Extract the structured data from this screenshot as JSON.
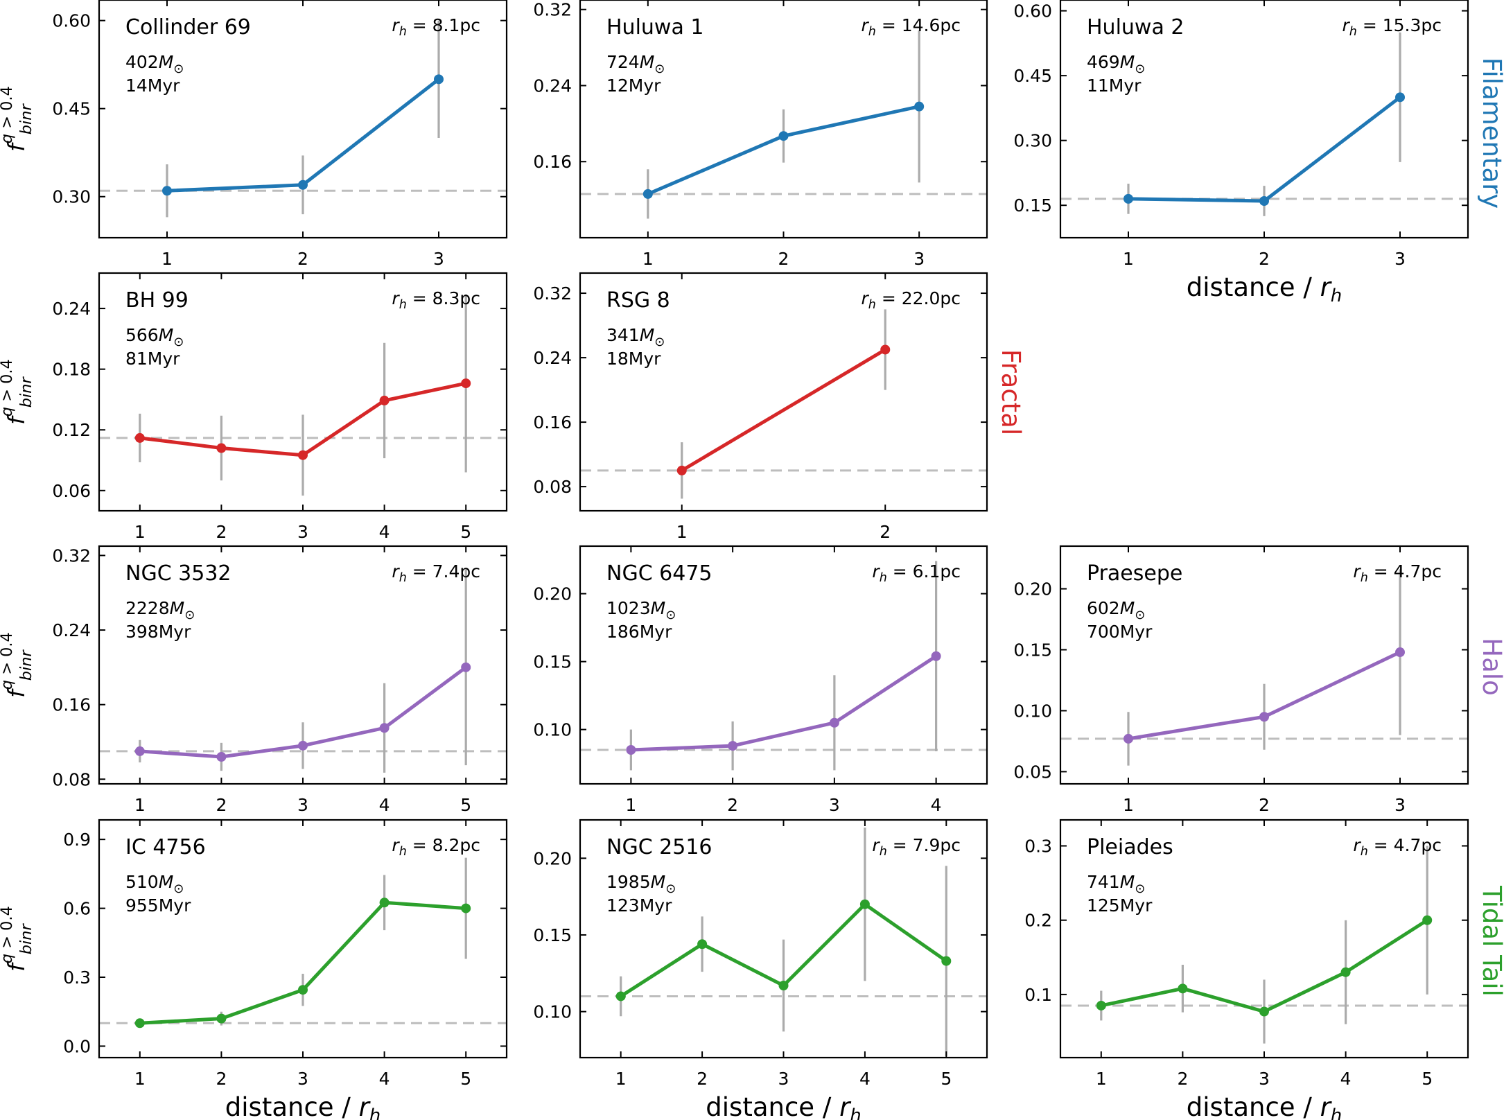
{
  "chart_data": [
    {
      "type": "line",
      "title": "Collinder 69",
      "mass": "402",
      "age": "14Myr",
      "rh": "8.1pc",
      "group": "Filamentary",
      "color": "#1f77b4",
      "x": [
        1,
        2,
        3
      ],
      "values": [
        0.31,
        0.32,
        0.5
      ],
      "err_low": [
        0.045,
        0.05,
        0.1
      ],
      "err_high": [
        0.045,
        0.05,
        0.1
      ],
      "ref": 0.31,
      "ylim": [
        0.23,
        0.635
      ],
      "xlim": [
        0.5,
        3.5
      ],
      "yticks": [
        "0.30",
        "0.45",
        "0.60"
      ],
      "xticks": [
        "1",
        "2",
        "3"
      ],
      "xlabel": "",
      "ylabel": "f_binr^{q>0.4}"
    },
    {
      "type": "line",
      "title": "Huluwa 1",
      "mass": "724",
      "age": "12Myr",
      "rh": "14.6pc",
      "group": "Filamentary",
      "color": "#1f77b4",
      "x": [
        1,
        2,
        3
      ],
      "values": [
        0.126,
        0.187,
        0.218
      ],
      "err_low": [
        0.026,
        0.028,
        0.08
      ],
      "err_high": [
        0.026,
        0.028,
        0.08
      ],
      "ref": 0.126,
      "ylim": [
        0.08,
        0.33
      ],
      "xlim": [
        0.5,
        3.5
      ],
      "yticks": [
        "0.16",
        "0.24",
        "0.32"
      ],
      "xticks": [
        "1",
        "2",
        "3"
      ],
      "xlabel": "",
      "ylabel": ""
    },
    {
      "type": "line",
      "title": "Huluwa 2",
      "mass": "469",
      "age": "11Myr",
      "rh": "15.3pc",
      "group": "Filamentary",
      "color": "#1f77b4",
      "x": [
        1,
        2,
        3
      ],
      "values": [
        0.165,
        0.16,
        0.4
      ],
      "err_low": [
        0.035,
        0.035,
        0.15
      ],
      "err_high": [
        0.035,
        0.035,
        0.15
      ],
      "ref": 0.165,
      "ylim": [
        0.075,
        0.625
      ],
      "xlim": [
        0.5,
        3.5
      ],
      "yticks": [
        "0.15",
        "0.30",
        "0.45",
        "0.60"
      ],
      "xticks": [
        "1",
        "2",
        "3"
      ],
      "xlabel": "distance / r_h",
      "ylabel": ""
    },
    {
      "type": "line",
      "title": "BH 99",
      "mass": "566",
      "age": "81Myr",
      "rh": "8.3pc",
      "group": "Fractal",
      "color": "#d62728",
      "x": [
        1,
        2,
        3,
        4,
        5
      ],
      "values": [
        0.112,
        0.102,
        0.095,
        0.149,
        0.166
      ],
      "err_low": [
        0.024,
        0.032,
        0.04,
        0.057,
        0.088
      ],
      "err_high": [
        0.024,
        0.032,
        0.04,
        0.057,
        0.088
      ],
      "ref": 0.112,
      "ylim": [
        0.04,
        0.275
      ],
      "xlim": [
        0.5,
        5.5
      ],
      "yticks": [
        "0.06",
        "0.12",
        "0.18",
        "0.24"
      ],
      "xticks": [
        "1",
        "2",
        "3",
        "4",
        "5"
      ],
      "xlabel": "",
      "ylabel": "f_binr^{q>0.4}"
    },
    {
      "type": "line",
      "title": "RSG 8",
      "mass": "341",
      "age": "18Myr",
      "rh": "22.0pc",
      "group": "Fractal",
      "color": "#d62728",
      "x": [
        1,
        2
      ],
      "values": [
        0.1,
        0.25
      ],
      "err_low": [
        0.035,
        0.05
      ],
      "err_high": [
        0.035,
        0.05
      ],
      "ref": 0.1,
      "ylim": [
        0.05,
        0.345
      ],
      "xlim": [
        0.5,
        2.5
      ],
      "yticks": [
        "0.08",
        "0.16",
        "0.24",
        "0.32"
      ],
      "xticks": [
        "1",
        "2"
      ],
      "xlabel": "",
      "ylabel": ""
    },
    {
      "type": "line",
      "title": "NGC 3532",
      "mass": "2228",
      "age": "398Myr",
      "rh": "7.4pc",
      "group": "Halo",
      "color": "#9467bd",
      "x": [
        1,
        2,
        3,
        4,
        5
      ],
      "values": [
        0.11,
        0.104,
        0.116,
        0.135,
        0.2
      ],
      "err_low": [
        0.012,
        0.015,
        0.025,
        0.048,
        0.105
      ],
      "err_high": [
        0.012,
        0.015,
        0.025,
        0.048,
        0.105
      ],
      "ref": 0.11,
      "ylim": [
        0.075,
        0.33
      ],
      "xlim": [
        0.5,
        5.5
      ],
      "yticks": [
        "0.08",
        "0.16",
        "0.24",
        "0.32"
      ],
      "xticks": [
        "1",
        "2",
        "3",
        "4",
        "5"
      ],
      "xlabel": "",
      "ylabel": "f_binr^{q>0.4}"
    },
    {
      "type": "line",
      "title": "NGC 6475",
      "mass": "1023",
      "age": "186Myr",
      "rh": "6.1pc",
      "group": "Halo",
      "color": "#9467bd",
      "x": [
        1,
        2,
        3,
        4
      ],
      "values": [
        0.085,
        0.088,
        0.105,
        0.154
      ],
      "err_low": [
        0.015,
        0.018,
        0.035,
        0.07
      ],
      "err_high": [
        0.015,
        0.018,
        0.035,
        0.07
      ],
      "ref": 0.085,
      "ylim": [
        0.06,
        0.235
      ],
      "xlim": [
        0.5,
        4.5
      ],
      "yticks": [
        "0.10",
        "0.15",
        "0.20"
      ],
      "xticks": [
        "1",
        "2",
        "3",
        "4"
      ],
      "xlabel": "",
      "ylabel": ""
    },
    {
      "type": "line",
      "title": "Praesepe",
      "mass": "602",
      "age": "700Myr",
      "rh": "4.7pc",
      "group": "Halo",
      "color": "#9467bd",
      "x": [
        1,
        2,
        3
      ],
      "values": [
        0.077,
        0.095,
        0.148
      ],
      "err_low": [
        0.022,
        0.027,
        0.068
      ],
      "err_high": [
        0.022,
        0.027,
        0.068
      ],
      "ref": 0.077,
      "ylim": [
        0.04,
        0.235
      ],
      "xlim": [
        0.5,
        3.5
      ],
      "yticks": [
        "0.05",
        "0.10",
        "0.15",
        "0.20"
      ],
      "xticks": [
        "1",
        "2",
        "3"
      ],
      "xlabel": "",
      "ylabel": ""
    },
    {
      "type": "line",
      "title": "IC 4756",
      "mass": "510",
      "age": "955Myr",
      "rh": "8.2pc",
      "group": "Tidal Tail",
      "color": "#2ca02c",
      "x": [
        1,
        2,
        3,
        4,
        5
      ],
      "values": [
        0.1,
        0.12,
        0.245,
        0.625,
        0.6
      ],
      "err_low": [
        0.02,
        0.03,
        0.07,
        0.12,
        0.22
      ],
      "err_high": [
        0.02,
        0.03,
        0.07,
        0.12,
        0.22
      ],
      "ref": 0.1,
      "ylim": [
        -0.05,
        0.985
      ],
      "xlim": [
        0.5,
        5.5
      ],
      "yticks": [
        "0.0",
        "0.3",
        "0.6",
        "0.9"
      ],
      "xticks": [
        "1",
        "2",
        "3",
        "4",
        "5"
      ],
      "xlabel": "distance / r_h",
      "ylabel": "f_binr^{q>0.4}"
    },
    {
      "type": "line",
      "title": "NGC 2516",
      "mass": "1985",
      "age": "123Myr",
      "rh": "7.9pc",
      "group": "Tidal Tail",
      "color": "#2ca02c",
      "x": [
        1,
        2,
        3,
        4,
        5
      ],
      "values": [
        0.11,
        0.144,
        0.117,
        0.17,
        0.133
      ],
      "err_low": [
        0.013,
        0.018,
        0.03,
        0.05,
        0.062
      ],
      "err_high": [
        0.013,
        0.018,
        0.03,
        0.05,
        0.062
      ],
      "ref": 0.11,
      "ylim": [
        0.07,
        0.225
      ],
      "xlim": [
        0.5,
        5.5
      ],
      "yticks": [
        "0.10",
        "0.15",
        "0.20"
      ],
      "xticks": [
        "1",
        "2",
        "3",
        "4",
        "5"
      ],
      "xlabel": "distance / r_h",
      "ylabel": ""
    },
    {
      "type": "line",
      "title": "Pleiades",
      "mass": "741",
      "age": "125Myr",
      "rh": "4.7pc",
      "group": "Tidal Tail",
      "color": "#2ca02c",
      "x": [
        1,
        2,
        3,
        4,
        5
      ],
      "values": [
        0.085,
        0.108,
        0.077,
        0.13,
        0.2
      ],
      "err_low": [
        0.02,
        0.032,
        0.043,
        0.07,
        0.1
      ],
      "err_high": [
        0.02,
        0.032,
        0.043,
        0.07,
        0.1
      ],
      "ref": 0.085,
      "ylim": [
        0.015,
        0.335
      ],
      "xlim": [
        0.5,
        5.5
      ],
      "yticks": [
        "0.1",
        "0.2",
        "0.3"
      ],
      "xticks": [
        "1",
        "2",
        "3",
        "4",
        "5"
      ],
      "xlabel": "distance / r_h",
      "ylabel": ""
    }
  ],
  "group_labels": [
    {
      "text": "Filamentary",
      "color": "#1f77b4"
    },
    {
      "text": "Fractal",
      "color": "#d62728"
    },
    {
      "text": "Halo",
      "color": "#9467bd"
    },
    {
      "text": "Tidal Tail",
      "color": "#2ca02c"
    }
  ]
}
